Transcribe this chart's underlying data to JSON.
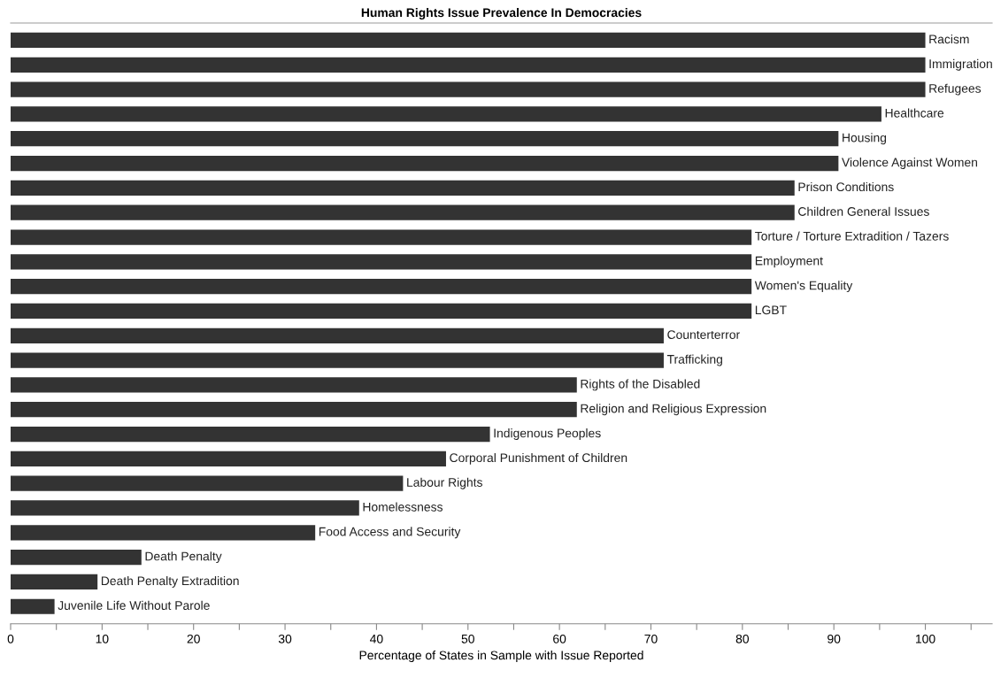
{
  "chart_data": {
    "type": "bar",
    "orientation": "horizontal",
    "title": "Human Rights Issue Prevalence In Democracies",
    "xlabel": "Percentage of States in Sample with Issue Reported",
    "categories": [
      "Racism",
      "Immigration",
      "Refugees",
      "Healthcare",
      "Housing",
      "Violence Against Women",
      "Prison Conditions",
      "Children General Issues",
      "Torture / Torture Extradition / Tazers",
      "Employment",
      "Women's Equality",
      "LGBT",
      "Counterterror",
      "Trafficking",
      "Rights of the Disabled",
      "Religion and Religious Expression",
      "Indigenous Peoples",
      "Corporal Punishment of Children",
      "Labour Rights",
      "Homelessness",
      "Food Access and Security",
      "Death Penalty",
      "Death Penalty Extradition",
      "Juvenile Life Without Parole"
    ],
    "values": [
      100,
      100,
      100,
      95.2,
      90.5,
      90.5,
      85.7,
      85.7,
      81,
      81,
      81,
      81,
      71.4,
      71.4,
      61.9,
      61.9,
      52.4,
      47.6,
      42.9,
      38.1,
      33.3,
      14.3,
      9.5,
      4.8
    ],
    "color": "#333333",
    "xlim": [
      0,
      107.3
    ],
    "xticks": [
      0,
      {
        "value": 5,
        "label": null
      },
      10,
      {
        "value": 15,
        "label": null
      },
      20,
      {
        "value": 25,
        "label": null
      },
      30,
      {
        "value": 35,
        "label": null
      },
      40,
      {
        "value": 45,
        "label": null
      },
      50,
      {
        "value": 55,
        "label": null
      },
      60,
      {
        "value": 65,
        "label": null
      },
      70,
      {
        "value": 75,
        "label": null
      },
      80,
      {
        "value": 85,
        "label": null
      },
      90,
      {
        "value": 95,
        "label": null
      },
      100,
      {
        "value": 105,
        "label": null
      }
    ],
    "grid": false,
    "legend": false
  }
}
